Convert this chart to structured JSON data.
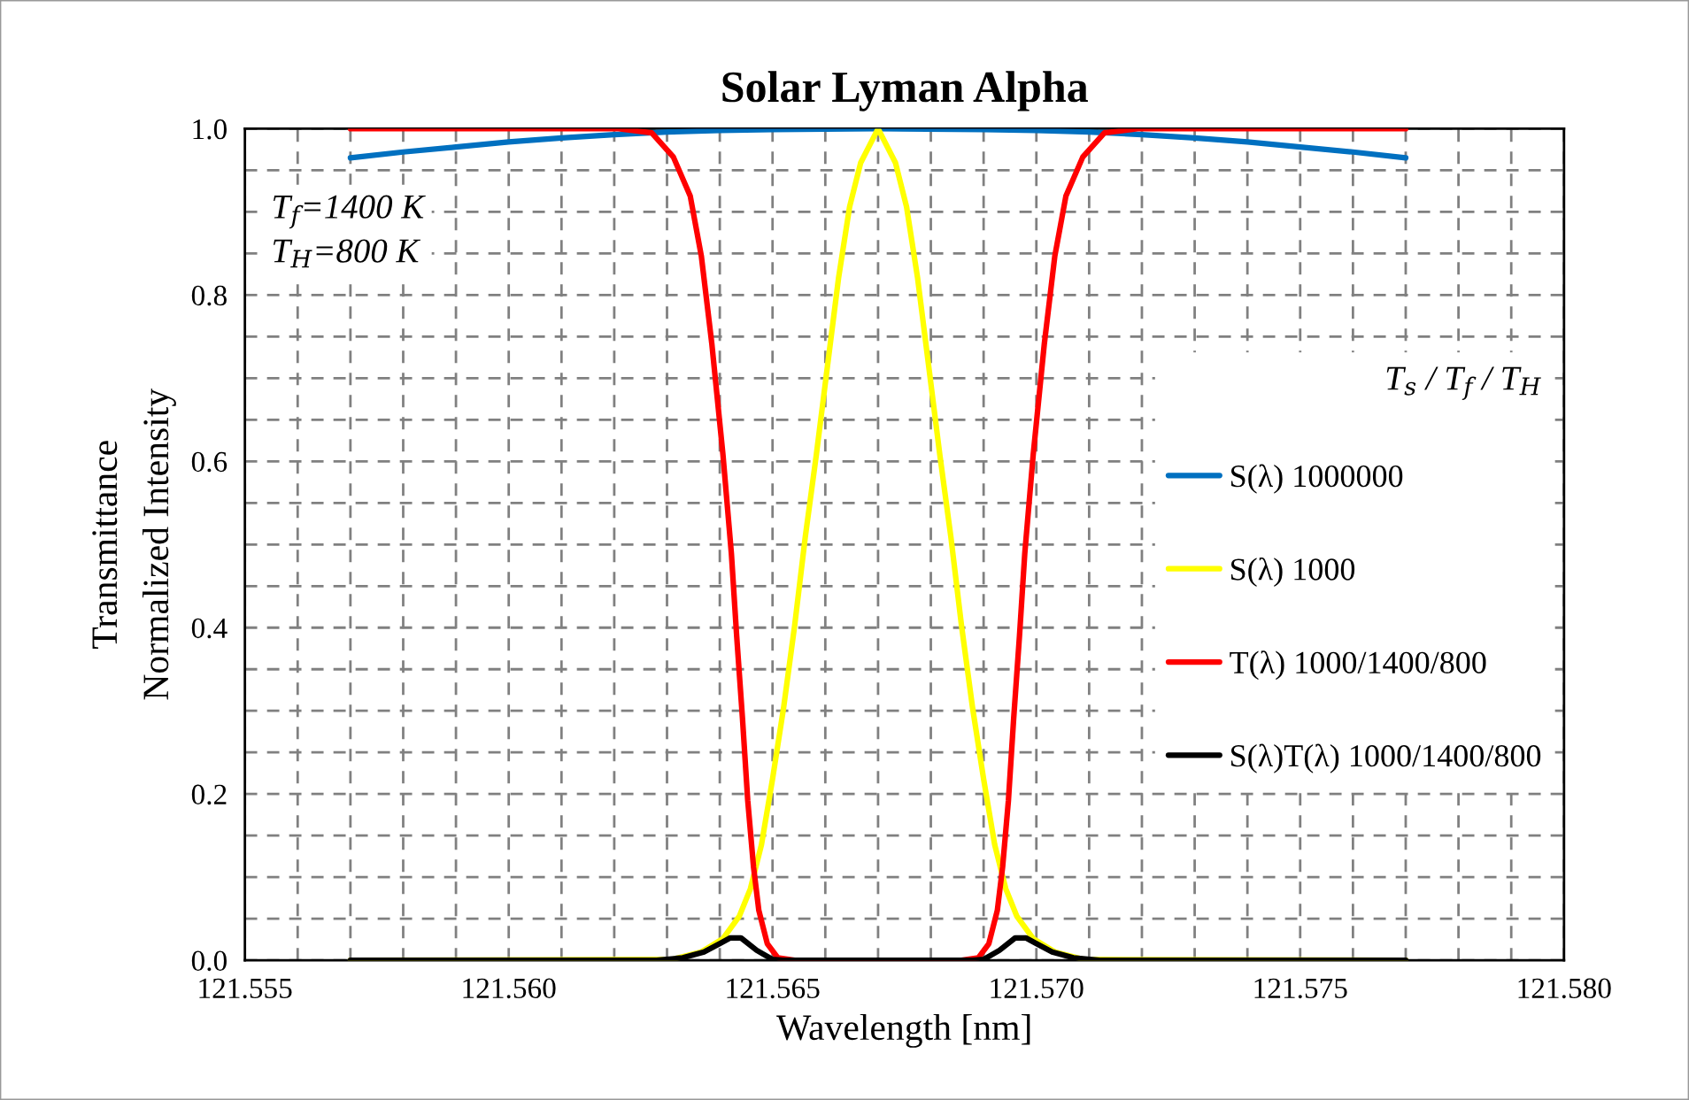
{
  "chart_data": {
    "type": "line",
    "title": "Solar Lyman Alpha",
    "xlabel": "Wavelength [nm]",
    "ylabel": "Transmittance\nNormalized Intensity",
    "legend_title": "T$_{s}$ / T$_{f}$ / T$_{H}$",
    "annotations": [
      "T$_{f}$=1400 K\nT$_{H}$=800 K"
    ],
    "series": [
      {
        "name": "S(λ) 1000000",
        "color": "#0070c0",
        "x": [
          121.557,
          121.558,
          121.559,
          121.56,
          121.561,
          121.562,
          121.563,
          121.564,
          121.565,
          121.567,
          121.569,
          121.57,
          121.571,
          121.572,
          121.573,
          121.574,
          121.575,
          121.576,
          121.577
        ],
        "values": [
          0.965,
          0.972,
          0.978,
          0.984,
          0.989,
          0.993,
          0.996,
          0.998,
          0.999,
          1.0,
          0.999,
          0.998,
          0.996,
          0.993,
          0.989,
          0.984,
          0.978,
          0.972,
          0.965
        ]
      },
      {
        "name": "S(λ) 1000",
        "color": "#ffff00",
        "x": [
          121.557,
          121.5631,
          121.56365,
          121.56406,
          121.56437,
          121.56458,
          121.56479,
          121.565,
          121.56521,
          121.56542,
          121.56562,
          121.56583,
          121.56604,
          121.56625,
          121.56646,
          121.56667,
          121.567,
          121.56733,
          121.56754,
          121.56775,
          121.56796,
          121.56817,
          121.56838,
          121.56858,
          121.56879,
          121.569,
          121.56921,
          121.56942,
          121.56963,
          121.56994,
          121.57035,
          121.5709,
          121.577
        ],
        "values": [
          0,
          0.001,
          0.01,
          0.026,
          0.053,
          0.086,
          0.139,
          0.218,
          0.304,
          0.403,
          0.509,
          0.608,
          0.714,
          0.82,
          0.906,
          0.959,
          1.0,
          0.959,
          0.906,
          0.82,
          0.714,
          0.608,
          0.509,
          0.403,
          0.304,
          0.218,
          0.139,
          0.086,
          0.053,
          0.026,
          0.01,
          0.001,
          0
        ]
      },
      {
        "name": "T(λ) 1000/1400/800",
        "color": "#ff0000",
        "x": [
          121.557,
          121.56208,
          121.56271,
          121.56312,
          121.56344,
          121.56365,
          121.56385,
          121.56406,
          121.56422,
          121.56432,
          121.56443,
          121.56453,
          121.56464,
          121.56474,
          121.5649,
          121.5651,
          121.56542,
          121.56858,
          121.5689,
          121.5691,
          121.56926,
          121.56936,
          121.56947,
          121.56957,
          121.56968,
          121.56978,
          121.56994,
          121.57015,
          121.57035,
          121.57056,
          121.57088,
          121.57129,
          121.57192,
          121.577
        ],
        "values": [
          1.0,
          1.0,
          0.995,
          0.966,
          0.919,
          0.847,
          0.741,
          0.608,
          0.489,
          0.39,
          0.291,
          0.192,
          0.112,
          0.06,
          0.02,
          0.003,
          0,
          0,
          0.003,
          0.02,
          0.06,
          0.112,
          0.192,
          0.291,
          0.39,
          0.489,
          0.608,
          0.741,
          0.847,
          0.919,
          0.966,
          0.995,
          1.0,
          1.0
        ]
      },
      {
        "name": "S(λ)T(λ) 1000/1400/800",
        "color": "#000000",
        "x": [
          121.557,
          121.5628,
          121.5633,
          121.5637,
          121.564,
          121.5642,
          121.5644,
          121.5647,
          121.565,
          121.5652,
          121.5688,
          121.569,
          121.5693,
          121.5696,
          121.5698,
          121.57,
          121.5703,
          121.5707,
          121.5712,
          121.577
        ],
        "values": [
          0,
          0,
          0.003,
          0.01,
          0.02,
          0.027,
          0.027,
          0.012,
          0.001,
          0,
          0,
          0.001,
          0.012,
          0.027,
          0.027,
          0.02,
          0.01,
          0.003,
          0,
          0
        ]
      }
    ],
    "xlim": [
      121.555,
      121.58
    ],
    "ylim": [
      0,
      1.0
    ],
    "xticks": [
      {
        "value": 121.555,
        "label": "121.555"
      },
      {
        "value": 121.556,
        "label": null
      },
      {
        "value": 121.557,
        "label": null
      },
      {
        "value": 121.558,
        "label": null
      },
      {
        "value": 121.559,
        "label": null
      },
      {
        "value": 121.56,
        "label": "121.560"
      },
      {
        "value": 121.561,
        "label": null
      },
      {
        "value": 121.562,
        "label": null
      },
      {
        "value": 121.563,
        "label": null
      },
      {
        "value": 121.564,
        "label": null
      },
      {
        "value": 121.565,
        "label": "121.565"
      },
      {
        "value": 121.566,
        "label": null
      },
      {
        "value": 121.567,
        "label": null
      },
      {
        "value": 121.568,
        "label": null
      },
      {
        "value": 121.569,
        "label": null
      },
      {
        "value": 121.57,
        "label": "121.570"
      },
      {
        "value": 121.571,
        "label": null
      },
      {
        "value": 121.572,
        "label": null
      },
      {
        "value": 121.573,
        "label": null
      },
      {
        "value": 121.574,
        "label": null
      },
      {
        "value": 121.575,
        "label": "121.575"
      },
      {
        "value": 121.576,
        "label": null
      },
      {
        "value": 121.577,
        "label": null
      },
      {
        "value": 121.578,
        "label": null
      },
      {
        "value": 121.579,
        "label": null
      },
      {
        "value": 121.58,
        "label": "121.580"
      }
    ],
    "yticks": [
      {
        "value": 0,
        "label": "0.0"
      },
      {
        "value": 0.05,
        "label": null
      },
      {
        "value": 0.1,
        "label": null
      },
      {
        "value": 0.15,
        "label": null
      },
      {
        "value": 0.2,
        "label": "0.2"
      },
      {
        "value": 0.25,
        "label": null
      },
      {
        "value": 0.3,
        "label": null
      },
      {
        "value": 0.35,
        "label": null
      },
      {
        "value": 0.4,
        "label": "0.4"
      },
      {
        "value": 0.45,
        "label": null
      },
      {
        "value": 0.5,
        "label": null
      },
      {
        "value": 0.55,
        "label": null
      },
      {
        "value": 0.6,
        "label": "0.6"
      },
      {
        "value": 0.65,
        "label": null
      },
      {
        "value": 0.7,
        "label": null
      },
      {
        "value": 0.75,
        "label": null
      },
      {
        "value": 0.8,
        "label": "0.8"
      },
      {
        "value": 0.85,
        "label": null
      },
      {
        "value": 0.9,
        "label": null
      },
      {
        "value": 0.95,
        "label": null
      },
      {
        "value": 1.0,
        "label": "1.0"
      }
    ],
    "grid": true,
    "legend": "right",
    "line_style": "solid",
    "marker": "none"
  }
}
